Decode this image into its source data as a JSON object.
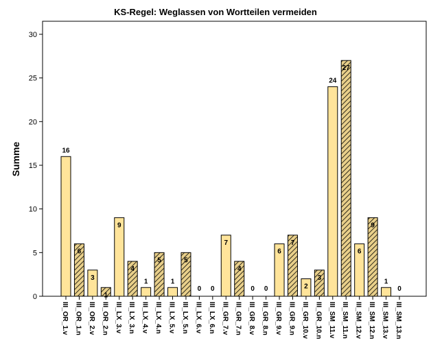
{
  "chart_data": {
    "type": "bar",
    "title": "KS-Regel: Weglassen von Wortteilen vermeiden",
    "ylabel": "Summe",
    "xlabel": "",
    "ylim": [
      0,
      32
    ],
    "yticks": [
      0,
      5,
      10,
      15,
      20,
      25,
      30
    ],
    "grid": false,
    "categories": [
      "III_OR_1.v",
      "III_OR_1.n",
      "III_OR_2.v",
      "III_OR_2.n",
      "III_LX_3.v",
      "III_LX_3.n",
      "III_LX_4.v",
      "III_LX_4.n",
      "III_LX_5.v",
      "III_LX_5.n",
      "III_LX_6.v",
      "III_LX_6.n",
      "III_GR_7.v",
      "III_GR_7.n",
      "III_GR_8.v",
      "III_GR_8.n",
      "III_GR_9.v",
      "III_GR_9.n",
      "III_GR_10.v",
      "III_GR_10.n",
      "III_SM_11.v",
      "III_SM_11.n",
      "III_SM_12.v",
      "III_SM_12.n",
      "III_SM_13.v",
      "III_SM_13.n"
    ],
    "values": [
      16,
      6,
      3,
      1,
      9,
      4,
      1,
      5,
      1,
      5,
      0,
      0,
      7,
      4,
      0,
      0,
      6,
      7,
      2,
      3,
      24,
      27,
      6,
      9,
      1,
      0
    ],
    "patterns": [
      "solid",
      "hatched",
      "solid",
      "hatched",
      "solid",
      "hatched",
      "solid",
      "hatched",
      "solid",
      "hatched",
      "solid",
      "hatched",
      "solid",
      "hatched",
      "solid",
      "hatched",
      "solid",
      "hatched",
      "solid",
      "hatched",
      "solid",
      "hatched",
      "solid",
      "hatched",
      "solid",
      "hatched"
    ],
    "colors": {
      "bar_fill": "#ffe49a",
      "bar_stroke": "#000000",
      "hatch": "#000000",
      "hatch_bg": "#e8cf8a"
    }
  }
}
